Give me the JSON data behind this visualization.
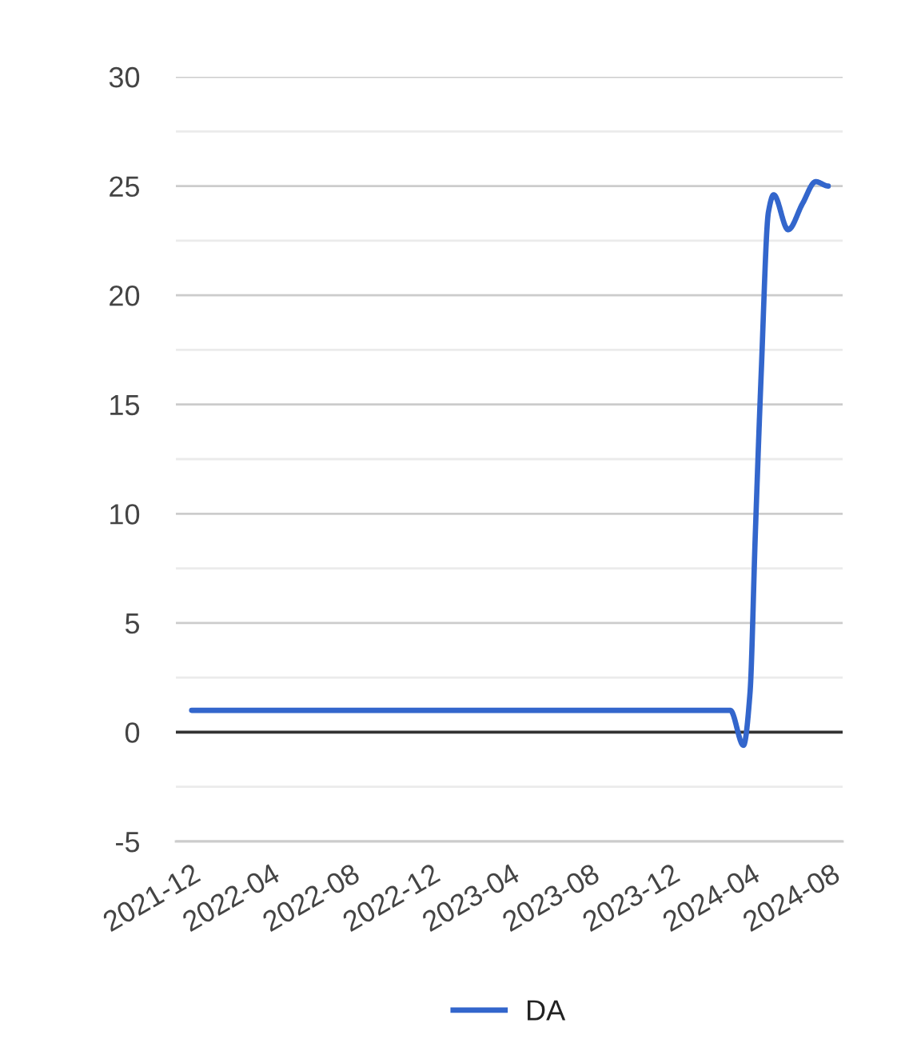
{
  "chart_data": {
    "type": "line",
    "x": [
      "2021-12-01",
      "2024-02-29",
      "2024-03-20",
      "2024-03-30",
      "2024-04-07",
      "2024-04-16",
      "2024-04-27",
      "2024-05-05",
      "2024-05-27",
      "2024-06-18",
      "2024-07-08",
      "2024-07-27"
    ],
    "series": [
      {
        "name": "DA",
        "color": "#3366cc",
        "values": [
          1,
          1,
          -0.6,
          1.8,
          9,
          16.4,
          23.8,
          24.6,
          23.0,
          24.2,
          25.2,
          25.0
        ]
      }
    ],
    "xlim": [
      "2021-11-07",
      "2024-08-18"
    ],
    "xticks": [
      "2021-12",
      "2022-04",
      "2022-08",
      "2022-12",
      "2023-04",
      "2023-08",
      "2023-12",
      "2024-04",
      "2024-08"
    ],
    "ylim": [
      -5,
      30
    ],
    "yticks": [
      -5,
      {
        "value": -2.5,
        "label": null
      },
      0,
      {
        "value": 2.5,
        "label": null
      },
      5,
      {
        "value": 7.5,
        "label": null
      },
      10,
      {
        "value": 12.5,
        "label": null
      },
      15,
      {
        "value": 17.5,
        "label": null
      },
      20,
      {
        "value": 22.5,
        "label": null
      },
      25,
      {
        "value": 27.5,
        "label": null
      },
      30
    ],
    "grid": "y",
    "legend": "bottom",
    "ref_lines": [
      {
        "axis": "y",
        "value": 0,
        "color": "#333333"
      }
    ]
  }
}
